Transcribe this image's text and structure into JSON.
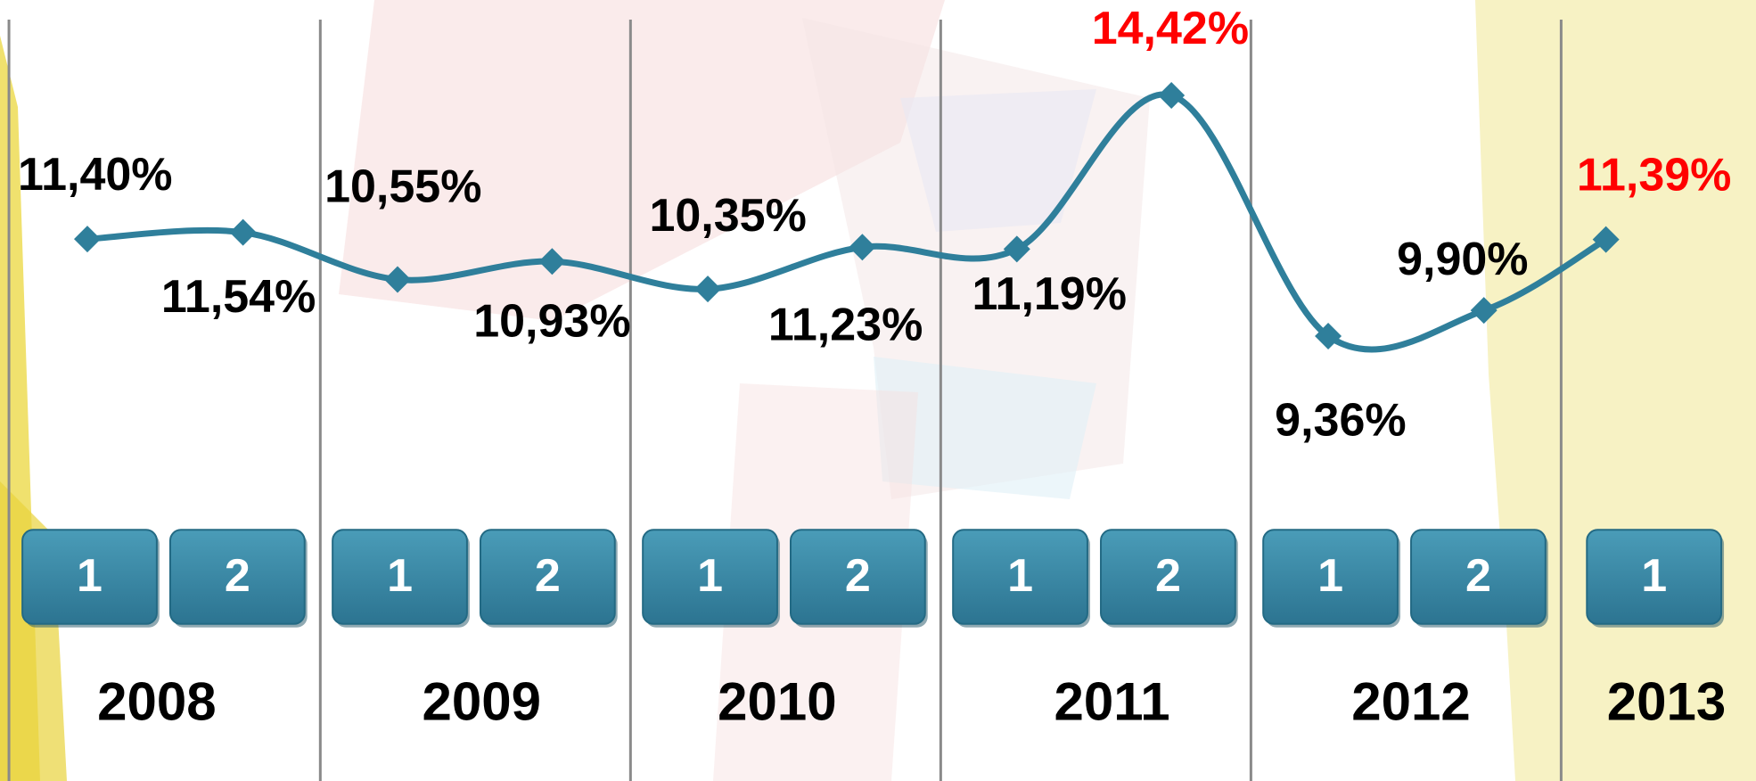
{
  "chart_data": {
    "type": "line",
    "categories": [
      "1",
      "2",
      "1",
      "2",
      "1",
      "2",
      "1",
      "2",
      "1",
      "2",
      "1"
    ],
    "years": [
      "2008",
      "2009",
      "2010",
      "2011",
      "2012",
      "2013"
    ],
    "series": [
      {
        "color": "#2f7f9b",
        "values": [
          11.4,
          11.54,
          10.55,
          10.93,
          10.35,
          11.23,
          11.19,
          14.42,
          9.36,
          9.9,
          11.39
        ],
        "value_labels": [
          "11,40%",
          "11,54%",
          "10,55%",
          "10,93%",
          "10,35%",
          "11,23%",
          "11,19%",
          "14,42%",
          "9,36%",
          "9,90%",
          "11,39%"
        ],
        "value_label_colors": [
          "#000000",
          "#000000",
          "#000000",
          "#000000",
          "#000000",
          "#000000",
          "#000000",
          "#ff0000",
          "#000000",
          "#000000",
          "#ff0000"
        ]
      }
    ]
  }
}
